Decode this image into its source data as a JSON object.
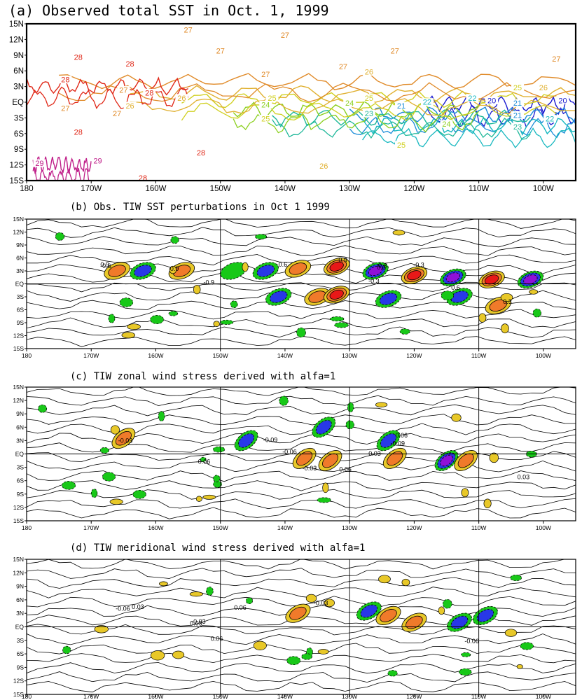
{
  "chart_data": [
    {
      "type": "contour",
      "title": "(a) Observed total SST in Oct. 1, 1999",
      "x_ticks": [
        "180",
        "170W",
        "160W",
        "150W",
        "140W",
        "130W",
        "120W",
        "110W",
        "100W"
      ],
      "y_ticks": [
        "15N",
        "12N",
        "9N",
        "6N",
        "3N",
        "EQ",
        "3S",
        "6S",
        "9S",
        "12S",
        "15S"
      ],
      "xlim_lon": [
        180,
        265
      ],
      "ylim_lat": [
        -15,
        15
      ],
      "contour_levels": [
        {
          "value": "20",
          "color": "#1a1ad0",
          "lat": -0.5,
          "lon_start": 242,
          "lon_end": 265
        },
        {
          "value": "21",
          "color": "#1a8cd8",
          "lat": -2.5,
          "lon_start": 230,
          "lon_end": 265
        },
        {
          "value": "22",
          "color": "#18b8c0",
          "lat": -4.5,
          "lon_start": 232,
          "lon_end": 265
        },
        {
          "value": "23",
          "color": "#20b89a",
          "lat": -3.0,
          "lon_start": 218,
          "lon_end": 258
        },
        {
          "value": "24",
          "color": "#8cd020",
          "lat": -1.5,
          "lon_start": 212,
          "lon_end": 250
        },
        {
          "value": "25",
          "color": "#d0d020",
          "lat": 0.5,
          "lon_start": 204,
          "lon_end": 262
        },
        {
          "value": "26",
          "color": "#e0b030",
          "lat": 1.5,
          "lon_start": 196,
          "lon_end": 265
        },
        {
          "value": "27",
          "color": "#e08a28",
          "lat": 4.0,
          "lon_start": 185,
          "lon_end": 265
        },
        {
          "value": "28",
          "color": "#e02818",
          "lat": 3.0,
          "lon_start": 180,
          "lon_end": 205
        },
        {
          "value": "29",
          "color": "#c0208a",
          "lat": -12.0,
          "lon_start": 181,
          "lon_end": 190
        }
      ],
      "contour_labels": [
        {
          "text": "27",
          "lon": 205,
          "lat": 13.5,
          "level": "27"
        },
        {
          "text": "27",
          "lon": 220,
          "lat": 12.5,
          "level": "27"
        },
        {
          "text": "27",
          "lon": 210,
          "lat": 9.5,
          "level": "27"
        },
        {
          "text": "27",
          "lon": 237,
          "lat": 9.5,
          "level": "27"
        },
        {
          "text": "27",
          "lon": 262,
          "lat": 8.0,
          "level": "27"
        },
        {
          "text": "27",
          "lon": 217,
          "lat": 5.0,
          "level": "27"
        },
        {
          "text": "27",
          "lon": 229,
          "lat": 6.5,
          "level": "27"
        },
        {
          "text": "27",
          "lon": 195,
          "lat": 2.0,
          "level": "27"
        },
        {
          "text": "27",
          "lon": 186,
          "lat": -1.5,
          "level": "27"
        },
        {
          "text": "27",
          "lon": 194,
          "lat": -2.5,
          "level": "27"
        },
        {
          "text": "26",
          "lon": 233,
          "lat": 5.5,
          "level": "26"
        },
        {
          "text": "26",
          "lon": 204,
          "lat": 0.5,
          "level": "26"
        },
        {
          "text": "26",
          "lon": 196,
          "lat": -1.0,
          "level": "26"
        },
        {
          "text": "26",
          "lon": 260,
          "lat": 2.5,
          "level": "26"
        },
        {
          "text": "26",
          "lon": 226,
          "lat": -12.5,
          "level": "26"
        },
        {
          "text": "25",
          "lon": 218,
          "lat": 0.5,
          "level": "25"
        },
        {
          "text": "25",
          "lon": 233,
          "lat": 0.5,
          "level": "25"
        },
        {
          "text": "25",
          "lon": 256,
          "lat": 2.5,
          "level": "25"
        },
        {
          "text": "25",
          "lon": 217,
          "lat": -3.5,
          "level": "25"
        },
        {
          "text": "25",
          "lon": 238,
          "lat": -8.5,
          "level": "25"
        },
        {
          "text": "24",
          "lon": 217,
          "lat": -0.8,
          "level": "24"
        },
        {
          "text": "24",
          "lon": 230,
          "lat": -0.5,
          "level": "24"
        },
        {
          "text": "24",
          "lon": 245,
          "lat": -4.5,
          "level": "24"
        },
        {
          "text": "23",
          "lon": 233,
          "lat": -2.5,
          "level": "23"
        },
        {
          "text": "23",
          "lon": 256,
          "lat": -5.0,
          "level": "23"
        },
        {
          "text": "22",
          "lon": 242,
          "lat": -0.3,
          "level": "22"
        },
        {
          "text": "22",
          "lon": 249,
          "lat": 0.5,
          "level": "22"
        },
        {
          "text": "22",
          "lon": 261,
          "lat": -3.5,
          "level": "22"
        },
        {
          "text": "21",
          "lon": 238,
          "lat": -1.0,
          "level": "21"
        },
        {
          "text": "21",
          "lon": 256,
          "lat": -0.5,
          "level": "21"
        },
        {
          "text": "21",
          "lon": 256,
          "lat": -2.8,
          "level": "21"
        },
        {
          "text": "20",
          "lon": 252,
          "lat": 0.0,
          "level": "20"
        },
        {
          "text": "20",
          "lon": 263,
          "lat": 0.0,
          "level": "20"
        },
        {
          "text": "28",
          "lon": 188,
          "lat": 8.3,
          "level": "28"
        },
        {
          "text": "28",
          "lon": 196,
          "lat": 7.0,
          "level": "28"
        },
        {
          "text": "28",
          "lon": 186,
          "lat": 4.0,
          "level": "28"
        },
        {
          "text": "28",
          "lon": 199,
          "lat": 1.5,
          "level": "28"
        },
        {
          "text": "28",
          "lon": 188,
          "lat": -6.0,
          "level": "28"
        },
        {
          "text": "28",
          "lon": 207,
          "lat": -10.0,
          "level": "28"
        },
        {
          "text": "28",
          "lon": 198,
          "lat": -14.8,
          "level": "28"
        },
        {
          "text": "29",
          "lon": 182,
          "lat": -12.0,
          "level": "29"
        },
        {
          "text": "29",
          "lon": 191,
          "lat": -11.5,
          "level": "29"
        }
      ]
    },
    {
      "type": "contour",
      "title": "(b) Obs. TIW SST perturbations in Oct 1 1999",
      "x_ticks": [
        "180",
        "170W",
        "160W",
        "150W",
        "140W",
        "130W",
        "120W",
        "110W",
        "100W"
      ],
      "y_ticks": [
        "15N",
        "12N",
        "9N",
        "6N",
        "3N",
        "EQ",
        "3S",
        "6S",
        "9S",
        "12S",
        "15S"
      ],
      "xlim_lon": [
        180,
        265
      ],
      "ylim_lat": [
        -15,
        15
      ],
      "contour_interval": 0.3,
      "shading": {
        "0.3": "#e8c828",
        "0.6": "#f07a2a",
        "0.9": "#e81818",
        "-0.3": "#18c818",
        "-0.6": "#2838e8",
        "-0.9": "#9010d8"
      },
      "features": [
        {
          "lon": 194.0,
          "lat": 3.0,
          "value": 0.6
        },
        {
          "lon": 198.0,
          "lat": 3.0,
          "value": -0.6
        },
        {
          "lon": 204.0,
          "lat": 3.0,
          "value": 0.6
        },
        {
          "lon": 212.0,
          "lat": 3.0,
          "value": -0.3
        },
        {
          "lon": 217.0,
          "lat": 3.0,
          "value": -0.6
        },
        {
          "lon": 222.0,
          "lat": 3.5,
          "value": 0.6
        },
        {
          "lon": 228.0,
          "lat": 4.0,
          "value": 0.9
        },
        {
          "lon": 234.0,
          "lat": 3.0,
          "value": -0.9
        },
        {
          "lon": 240.0,
          "lat": 2.0,
          "value": 0.9
        },
        {
          "lon": 246.0,
          "lat": 1.5,
          "value": -0.9
        },
        {
          "lon": 252.0,
          "lat": 1.0,
          "value": 0.9
        },
        {
          "lon": 258.0,
          "lat": 1.0,
          "value": -0.9
        },
        {
          "lon": 219.0,
          "lat": -3.0,
          "value": -0.6
        },
        {
          "lon": 225.0,
          "lat": -3.0,
          "value": 0.6
        },
        {
          "lon": 228.0,
          "lat": -2.5,
          "value": 0.9
        },
        {
          "lon": 236.0,
          "lat": -3.5,
          "value": -0.6
        },
        {
          "lon": 247.0,
          "lat": -3.0,
          "value": -0.6
        },
        {
          "lon": 253.0,
          "lat": -5.0,
          "value": 0.6
        }
      ],
      "labels": [
        "-0.3",
        "-0.6",
        "-0.9",
        "0.3",
        "0.6",
        "0.9"
      ]
    },
    {
      "type": "contour",
      "title": "(c) TIW zonal wind stress derived with alfa=1",
      "x_ticks": [
        "180",
        "170W",
        "160W",
        "150W",
        "140W",
        "130W",
        "120W",
        "110W",
        "100W"
      ],
      "y_ticks": [
        "15N",
        "12N",
        "9N",
        "6N",
        "3N",
        "EQ",
        "3S",
        "6S",
        "9S",
        "12S",
        "15S"
      ],
      "xlim_lon": [
        180,
        265
      ],
      "ylim_lat": [
        -15,
        15
      ],
      "contour_interval": 0.03,
      "shading": {
        "0.03": "#e8c828",
        "0.06": "#f07a2a",
        "0.09": "#e81818",
        "-0.03": "#18c818",
        "-0.06": "#2838e8",
        "-0.09": "#9010d8"
      },
      "features": [
        {
          "lon": 195.0,
          "lat": 3.5,
          "value": 0.06
        },
        {
          "lon": 214.0,
          "lat": 3.0,
          "value": -0.06
        },
        {
          "lon": 226.0,
          "lat": 6.0,
          "value": -0.06
        },
        {
          "lon": 236.0,
          "lat": 3.0,
          "value": -0.06
        },
        {
          "lon": 223.0,
          "lat": -1.0,
          "value": 0.06
        },
        {
          "lon": 227.0,
          "lat": -1.5,
          "value": 0.06
        },
        {
          "lon": 237.0,
          "lat": -1.0,
          "value": 0.06
        },
        {
          "lon": 245.0,
          "lat": -1.5,
          "value": -0.09
        },
        {
          "lon": 248.0,
          "lat": -1.5,
          "value": 0.06
        }
      ],
      "labels": [
        "-0.03",
        "-0.06",
        "-0.09",
        "0.03",
        "0.06"
      ]
    },
    {
      "type": "contour",
      "title": "(d) TIW meridional wind stress derived with alfa=1",
      "x_ticks": [
        "180",
        "170W",
        "160W",
        "150W",
        "140W",
        "130W",
        "120W",
        "110W",
        "100W"
      ],
      "y_ticks": [
        "15N",
        "12N",
        "9N",
        "6N",
        "3N",
        "EQ",
        "3S",
        "6S",
        "9S",
        "12S",
        "15S"
      ],
      "xlim_lon": [
        180,
        265
      ],
      "ylim_lat": [
        -15,
        15
      ],
      "contour_interval": 0.03,
      "shading": {
        "0.03": "#e8c828",
        "0.06": "#f07a2a",
        "0.09": "#e81818",
        "-0.03": "#18c818",
        "-0.06": "#2838e8",
        "-0.09": "#9010d8"
      },
      "features": [
        {
          "lon": 222.0,
          "lat": 3.0,
          "value": 0.06
        },
        {
          "lon": 233.0,
          "lat": 3.5,
          "value": -0.06
        },
        {
          "lon": 236.0,
          "lat": 2.5,
          "value": 0.06
        },
        {
          "lon": 240.0,
          "lat": 1.0,
          "value": 0.06
        },
        {
          "lon": 251.0,
          "lat": 2.5,
          "value": -0.06
        },
        {
          "lon": 247.0,
          "lat": 1.0,
          "value": -0.06
        }
      ],
      "labels": [
        "-0.03",
        "-0.06",
        "0.03",
        "0.06"
      ]
    }
  ]
}
